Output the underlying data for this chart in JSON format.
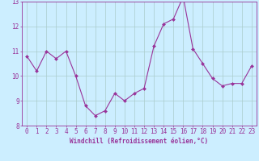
{
  "x": [
    0,
    1,
    2,
    3,
    4,
    5,
    6,
    7,
    8,
    9,
    10,
    11,
    12,
    13,
    14,
    15,
    16,
    17,
    18,
    19,
    20,
    21,
    22,
    23
  ],
  "y": [
    10.8,
    10.2,
    11.0,
    10.7,
    11.0,
    10.0,
    8.8,
    8.4,
    8.6,
    9.3,
    9.0,
    9.3,
    9.5,
    11.2,
    12.1,
    12.3,
    13.2,
    11.1,
    10.5,
    9.9,
    9.6,
    9.7,
    9.7,
    10.4
  ],
  "xlim": [
    -0.5,
    23.5
  ],
  "ylim": [
    8,
    13
  ],
  "yticks": [
    8,
    9,
    10,
    11,
    12,
    13
  ],
  "xticks": [
    0,
    1,
    2,
    3,
    4,
    5,
    6,
    7,
    8,
    9,
    10,
    11,
    12,
    13,
    14,
    15,
    16,
    17,
    18,
    19,
    20,
    21,
    22,
    23
  ],
  "xlabel": "Windchill (Refroidissement éolien,°C)",
  "line_color": "#993399",
  "marker_color": "#993399",
  "bg_color": "#cceeff",
  "grid_color": "#aacccc",
  "axis_color": "#993399",
  "tick_color": "#993399",
  "label_color": "#993399",
  "xlabel_fontsize": 5.5,
  "tick_fontsize": 5.5
}
